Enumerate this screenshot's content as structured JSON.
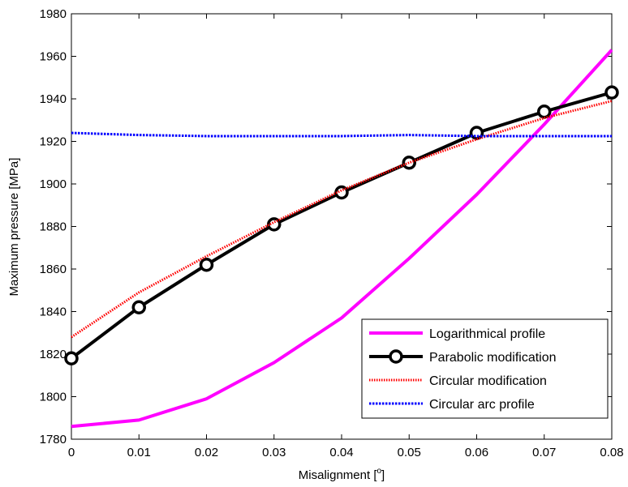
{
  "chart_data": {
    "type": "line",
    "xlabel": "Misalignment [",
    "xlabel_sup": "o",
    "xlabel_tail": "]",
    "ylabel": "Maximum pressure [MPa]",
    "xlim": [
      0,
      0.08
    ],
    "ylim": [
      1780,
      1980
    ],
    "x_ticks": [
      "0",
      "0.01",
      "0.02",
      "0.03",
      "0.04",
      "0.05",
      "0.06",
      "0.07",
      "0.08"
    ],
    "y_ticks": [
      "1780",
      "1800",
      "1820",
      "1840",
      "1860",
      "1880",
      "1900",
      "1920",
      "1940",
      "1960",
      "1980"
    ],
    "grid": false,
    "legend_position": "bottom-right",
    "x": [
      0,
      0.01,
      0.02,
      0.03,
      0.04,
      0.05,
      0.06,
      0.07,
      0.08
    ],
    "series": [
      {
        "name": "Logarithmical profile",
        "color": "#ff00ff",
        "style": "solid",
        "marker": "none",
        "values": [
          1786,
          1789,
          1799,
          1816,
          1837,
          1865,
          1895,
          1928,
          1963
        ]
      },
      {
        "name": "Parabolic modification",
        "color": "#000000",
        "style": "solid",
        "marker": "circle",
        "values": [
          1818,
          1842,
          1862,
          1881,
          1896,
          1910,
          1924,
          1934,
          1943
        ]
      },
      {
        "name": "Circular modification",
        "color": "#ff0000",
        "style": "dotted",
        "marker": "none",
        "values": [
          1828,
          1849,
          1866,
          1882,
          1897,
          1910,
          1921,
          1931,
          1939
        ]
      },
      {
        "name": "Circular arc profile",
        "color": "#0000ff",
        "style": "dotted",
        "marker": "none",
        "values": [
          1924,
          1923,
          1922.5,
          1922.5,
          1922.5,
          1923,
          1922.5,
          1922.5,
          1922.5
        ]
      }
    ]
  }
}
